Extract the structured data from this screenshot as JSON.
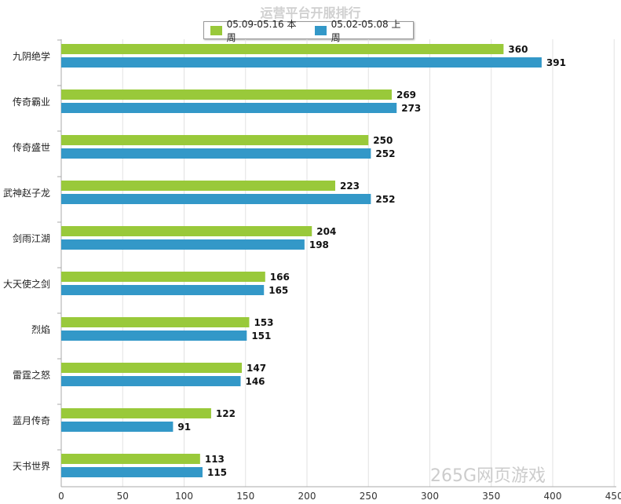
{
  "chart_data": {
    "type": "bar",
    "orientation": "horizontal",
    "title": "运营平台开服排行",
    "categories": [
      "九阴绝学",
      "传奇霸业",
      "传奇盛世",
      "武神赵子龙",
      "剑雨江湖",
      "大天使之剑",
      "烈焰",
      "雷霆之怒",
      "蓝月传奇",
      "天书世界"
    ],
    "series": [
      {
        "name": "05.09-05.16 本周",
        "color": "#99c93a",
        "values": [
          360,
          269,
          250,
          223,
          204,
          166,
          153,
          147,
          122,
          113
        ]
      },
      {
        "name": "05.02-05.08 上周",
        "color": "#3398c8",
        "values": [
          391,
          273,
          252,
          252,
          198,
          165,
          151,
          146,
          91,
          115
        ]
      }
    ],
    "xlim": [
      0,
      450
    ],
    "xticks": [
      0,
      50,
      100,
      150,
      200,
      250,
      300,
      350,
      400,
      450
    ],
    "grid": true,
    "legend_position": "top-center",
    "data_labels": true
  },
  "watermark": "265G网页游戏"
}
